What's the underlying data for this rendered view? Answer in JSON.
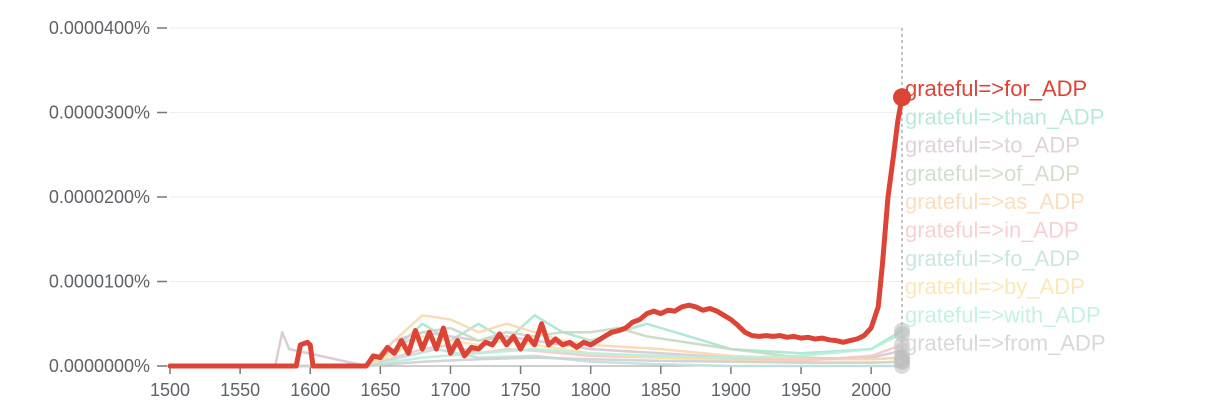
{
  "chart_data": {
    "type": "line",
    "title": "",
    "xlabel": "",
    "ylabel": "",
    "xlim": [
      1500,
      2022
    ],
    "ylim": [
      0,
      4.2e-07
    ],
    "y_ticks": [
      0,
      1e-07,
      2e-07,
      3e-07,
      4e-07
    ],
    "y_tick_labels": [
      "0.0000000%",
      "0.0000100%",
      "0.0000200%",
      "0.0000300%",
      "0.0000400%"
    ],
    "x_ticks": [
      1500,
      1550,
      1600,
      1650,
      1700,
      1750,
      1800,
      1850,
      1900,
      1950,
      2000
    ],
    "x_tick_labels": [
      "1500",
      "1550",
      "1600",
      "1650",
      "1700",
      "1750",
      "1800",
      "1850",
      "1900",
      "1950",
      "2000"
    ],
    "grid": "horizontal",
    "legend": "right",
    "marker_x": 2022,
    "series": [
      {
        "name": "grateful=>for_ADP",
        "color": "#db4437",
        "highlight": true,
        "points": [
          [
            1500,
            0
          ],
          [
            1590,
            0
          ],
          [
            1593,
            2.5e-08
          ],
          [
            1598,
            2.8e-08
          ],
          [
            1600,
            2.5e-08
          ],
          [
            1602,
            0
          ],
          [
            1640,
            0
          ],
          [
            1645,
            1.2e-08
          ],
          [
            1650,
            1e-08
          ],
          [
            1655,
            2.2e-08
          ],
          [
            1660,
            1.5e-08
          ],
          [
            1665,
            3e-08
          ],
          [
            1670,
            1.5e-08
          ],
          [
            1675,
            4.2e-08
          ],
          [
            1680,
            2e-08
          ],
          [
            1685,
            4e-08
          ],
          [
            1690,
            2e-08
          ],
          [
            1695,
            4.5e-08
          ],
          [
            1700,
            1.5e-08
          ],
          [
            1705,
            3e-08
          ],
          [
            1710,
            1.2e-08
          ],
          [
            1715,
            2.2e-08
          ],
          [
            1720,
            2e-08
          ],
          [
            1725,
            2.8e-08
          ],
          [
            1730,
            2.5e-08
          ],
          [
            1735,
            3.8e-08
          ],
          [
            1740,
            2.5e-08
          ],
          [
            1745,
            3.5e-08
          ],
          [
            1750,
            2e-08
          ],
          [
            1755,
            3.5e-08
          ],
          [
            1760,
            2.5e-08
          ],
          [
            1765,
            5e-08
          ],
          [
            1770,
            2.5e-08
          ],
          [
            1775,
            3.2e-08
          ],
          [
            1780,
            2.5e-08
          ],
          [
            1785,
            2.8e-08
          ],
          [
            1790,
            2.2e-08
          ],
          [
            1795,
            2.8e-08
          ],
          [
            1800,
            2.5e-08
          ],
          [
            1805,
            3e-08
          ],
          [
            1810,
            3.5e-08
          ],
          [
            1815,
            4e-08
          ],
          [
            1820,
            4.2e-08
          ],
          [
            1825,
            4.5e-08
          ],
          [
            1830,
            5.2e-08
          ],
          [
            1835,
            5.5e-08
          ],
          [
            1840,
            6.2e-08
          ],
          [
            1845,
            6.5e-08
          ],
          [
            1850,
            6.2e-08
          ],
          [
            1855,
            6.6e-08
          ],
          [
            1860,
            6.5e-08
          ],
          [
            1865,
            7e-08
          ],
          [
            1870,
            7.2e-08
          ],
          [
            1875,
            7e-08
          ],
          [
            1880,
            6.6e-08
          ],
          [
            1885,
            6.8e-08
          ],
          [
            1890,
            6.5e-08
          ],
          [
            1895,
            6e-08
          ],
          [
            1900,
            5.5e-08
          ],
          [
            1905,
            4.8e-08
          ],
          [
            1910,
            4e-08
          ],
          [
            1915,
            3.6e-08
          ],
          [
            1920,
            3.5e-08
          ],
          [
            1925,
            3.6e-08
          ],
          [
            1930,
            3.5e-08
          ],
          [
            1935,
            3.6e-08
          ],
          [
            1940,
            3.4e-08
          ],
          [
            1945,
            3.5e-08
          ],
          [
            1950,
            3.3e-08
          ],
          [
            1955,
            3.4e-08
          ],
          [
            1960,
            3.2e-08
          ],
          [
            1965,
            3.3e-08
          ],
          [
            1970,
            3.1e-08
          ],
          [
            1975,
            3e-08
          ],
          [
            1980,
            2.8e-08
          ],
          [
            1985,
            3e-08
          ],
          [
            1990,
            3.2e-08
          ],
          [
            1995,
            3.6e-08
          ],
          [
            2000,
            4.5e-08
          ],
          [
            2005,
            7e-08
          ],
          [
            2008,
            1.2e-07
          ],
          [
            2012,
            2e-07
          ],
          [
            2016,
            2.5e-07
          ],
          [
            2019,
            2.9e-07
          ],
          [
            2022,
            3.18e-07
          ]
        ]
      },
      {
        "name": "grateful=>than_ADP",
        "color": "#a8e6cf",
        "highlight": false,
        "points": [
          [
            1500,
            0
          ],
          [
            1640,
            0
          ],
          [
            1660,
            2e-08
          ],
          [
            1680,
            5e-08
          ],
          [
            1700,
            3e-08
          ],
          [
            1720,
            5e-08
          ],
          [
            1740,
            3e-08
          ],
          [
            1760,
            6e-08
          ],
          [
            1780,
            4e-08
          ],
          [
            1800,
            3e-08
          ],
          [
            1820,
            4e-08
          ],
          [
            1840,
            5e-08
          ],
          [
            1860,
            4e-08
          ],
          [
            1880,
            3e-08
          ],
          [
            1900,
            2e-08
          ],
          [
            1950,
            1.5e-08
          ],
          [
            2000,
            2e-08
          ],
          [
            2022,
            4.2e-08
          ]
        ]
      },
      {
        "name": "grateful=>to_ADP",
        "color": "#d9c7d4",
        "highlight": false,
        "points": [
          [
            1500,
            0
          ],
          [
            1575,
            0
          ],
          [
            1580,
            4e-08
          ],
          [
            1585,
            2e-08
          ],
          [
            1640,
            0
          ],
          [
            1660,
            3e-08
          ],
          [
            1680,
            4e-08
          ],
          [
            1700,
            3.5e-08
          ],
          [
            1720,
            3e-08
          ],
          [
            1740,
            3.5e-08
          ],
          [
            1760,
            3e-08
          ],
          [
            1780,
            2.5e-08
          ],
          [
            1800,
            2e-08
          ],
          [
            1850,
            1.5e-08
          ],
          [
            1900,
            1e-08
          ],
          [
            1950,
            8e-09
          ],
          [
            2000,
            1e-08
          ],
          [
            2022,
            1.8e-08
          ]
        ]
      },
      {
        "name": "grateful=>of_ADP",
        "color": "#c8d8c0",
        "highlight": false,
        "points": [
          [
            1500,
            0
          ],
          [
            1640,
            0
          ],
          [
            1660,
            2e-08
          ],
          [
            1680,
            4e-08
          ],
          [
            1700,
            4.5e-08
          ],
          [
            1720,
            3e-08
          ],
          [
            1740,
            4e-08
          ],
          [
            1760,
            3.5e-08
          ],
          [
            1780,
            4e-08
          ],
          [
            1800,
            4e-08
          ],
          [
            1820,
            4.5e-08
          ],
          [
            1840,
            3.5e-08
          ],
          [
            1860,
            3e-08
          ],
          [
            1880,
            2.5e-08
          ],
          [
            1900,
            2e-08
          ],
          [
            1950,
            1e-08
          ],
          [
            2000,
            8e-09
          ],
          [
            2022,
            1e-08
          ]
        ]
      },
      {
        "name": "grateful=>as_ADP",
        "color": "#f8d7b0",
        "highlight": false,
        "points": [
          [
            1500,
            0
          ],
          [
            1640,
            0
          ],
          [
            1660,
            3e-08
          ],
          [
            1680,
            6e-08
          ],
          [
            1700,
            5.5e-08
          ],
          [
            1720,
            4e-08
          ],
          [
            1740,
            5e-08
          ],
          [
            1760,
            4e-08
          ],
          [
            1780,
            3e-08
          ],
          [
            1800,
            2.5e-08
          ],
          [
            1850,
            2e-08
          ],
          [
            1900,
            1.2e-08
          ],
          [
            1950,
            8e-09
          ],
          [
            2000,
            8e-09
          ],
          [
            2022,
            1e-08
          ]
        ]
      },
      {
        "name": "grateful=>in_ADP",
        "color": "#f5c6c6",
        "highlight": false,
        "points": [
          [
            1500,
            0
          ],
          [
            1640,
            0
          ],
          [
            1660,
            1e-08
          ],
          [
            1680,
            2e-08
          ],
          [
            1700,
            2.5e-08
          ],
          [
            1720,
            1.5e-08
          ],
          [
            1740,
            2e-08
          ],
          [
            1760,
            1.8e-08
          ],
          [
            1780,
            1.5e-08
          ],
          [
            1800,
            1.2e-08
          ],
          [
            1850,
            1e-08
          ],
          [
            1900,
            8e-09
          ],
          [
            1950,
            6e-09
          ],
          [
            2000,
            1.2e-08
          ],
          [
            2022,
            2.5e-08
          ]
        ]
      },
      {
        "name": "grateful=>fo_ADP",
        "color": "#bfe0dc",
        "highlight": false,
        "points": [
          [
            1500,
            0
          ],
          [
            1640,
            0
          ],
          [
            1660,
            8e-09
          ],
          [
            1690,
            2e-08
          ],
          [
            1720,
            1e-08
          ],
          [
            1760,
            1.2e-08
          ],
          [
            1800,
            5e-09
          ],
          [
            1850,
            2e-09
          ],
          [
            1900,
            0
          ],
          [
            2022,
            0
          ]
        ]
      },
      {
        "name": "grateful=>by_ADP",
        "color": "#fbe3a6",
        "highlight": false,
        "points": [
          [
            1500,
            0
          ],
          [
            1640,
            0
          ],
          [
            1660,
            1.5e-08
          ],
          [
            1680,
            3.5e-08
          ],
          [
            1700,
            3e-08
          ],
          [
            1720,
            2.5e-08
          ],
          [
            1740,
            3e-08
          ],
          [
            1760,
            2.5e-08
          ],
          [
            1780,
            2e-08
          ],
          [
            1800,
            1.5e-08
          ],
          [
            1850,
            1e-08
          ],
          [
            1900,
            6e-09
          ],
          [
            1950,
            4e-09
          ],
          [
            2000,
            4e-09
          ],
          [
            2022,
            5e-09
          ]
        ]
      },
      {
        "name": "grateful=>with_ADP",
        "color": "#b7eedd",
        "highlight": false,
        "points": [
          [
            1500,
            0
          ],
          [
            1640,
            0
          ],
          [
            1680,
            1e-08
          ],
          [
            1720,
            1.5e-08
          ],
          [
            1760,
            2e-08
          ],
          [
            1800,
            1.5e-08
          ],
          [
            1850,
            1.2e-08
          ],
          [
            1900,
            1e-08
          ],
          [
            1950,
            1.2e-08
          ],
          [
            2000,
            2e-08
          ],
          [
            2022,
            3.8e-08
          ]
        ]
      },
      {
        "name": "grateful=>from_ADP",
        "color": "#cfcfcf",
        "highlight": false,
        "points": [
          [
            1500,
            0
          ],
          [
            1640,
            0
          ],
          [
            1680,
            5e-09
          ],
          [
            1720,
            8e-09
          ],
          [
            1760,
            1e-08
          ],
          [
            1800,
            8e-09
          ],
          [
            1850,
            6e-09
          ],
          [
            1900,
            5e-09
          ],
          [
            1950,
            4e-09
          ],
          [
            2000,
            4e-09
          ],
          [
            2022,
            5e-09
          ]
        ]
      }
    ]
  }
}
